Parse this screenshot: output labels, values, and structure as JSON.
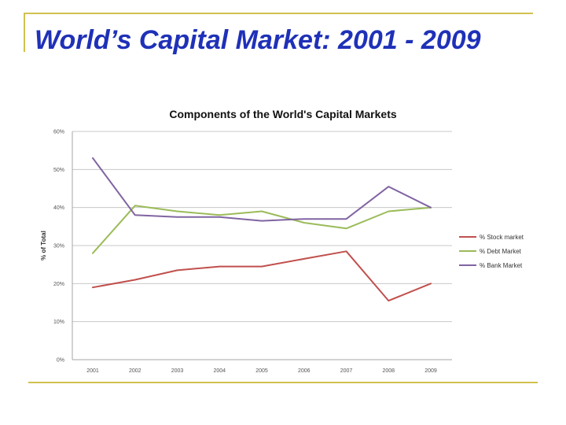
{
  "slide": {
    "title": "World’s Capital Market: 2001 - 2009"
  },
  "colors": {
    "accent_line": "#d2c14f",
    "title": "#1f31b8"
  },
  "chart_data": {
    "type": "line",
    "title": "Components of the World's Capital Markets",
    "xlabel": "",
    "ylabel": "% of Total",
    "x": [
      "2001",
      "2002",
      "2003",
      "2004",
      "2005",
      "2006",
      "2007",
      "2008",
      "2009"
    ],
    "ylim": [
      0,
      60
    ],
    "yticks": [
      0,
      10,
      20,
      30,
      40,
      50,
      60
    ],
    "ytick_labels": [
      "0%",
      "10%",
      "20%",
      "30%",
      "40%",
      "50%",
      "60%"
    ],
    "grid": true,
    "legend_position": "right",
    "series": [
      {
        "name": "% Stock market",
        "color": "#c0504d",
        "values": [
          19,
          21,
          23.5,
          24.5,
          24.5,
          26.5,
          28.5,
          15.5,
          20
        ]
      },
      {
        "name": "% Debt Market",
        "color": "#9bbb59",
        "values": [
          28,
          40.5,
          39,
          38,
          39,
          36,
          34.5,
          39,
          40
        ]
      },
      {
        "name": "% Bank Market",
        "color": "#8064a2",
        "values": [
          53,
          38,
          37.5,
          37.5,
          36.5,
          37,
          37,
          45.5,
          40
        ]
      }
    ]
  }
}
